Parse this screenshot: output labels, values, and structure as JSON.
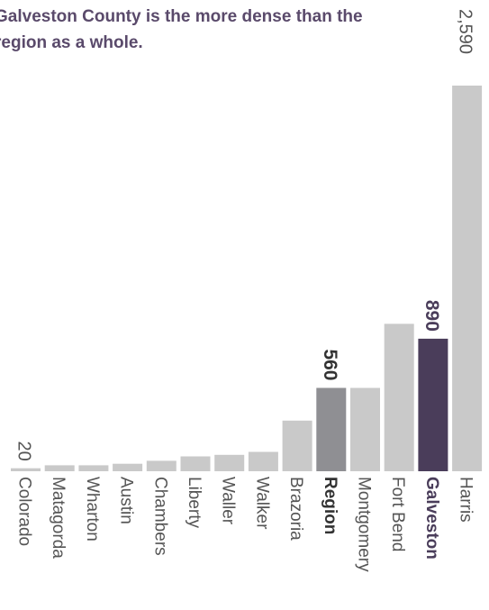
{
  "headline": "Galveston County is the more dense than the region as a whole.",
  "colors": {
    "default_bar": "#c9c9c9",
    "region_bar": "#8f8f93",
    "highlight_bar": "#4a3d5a",
    "label_text": "#555555",
    "highlight_text": "#4a3d5a"
  },
  "chart_data": {
    "type": "bar",
    "orientation": "vertical",
    "categories": [
      "Colorado",
      "Matagorda",
      "Wharton",
      "Austin",
      "Chambers",
      "Liberty",
      "Waller",
      "Walker",
      "Brazoria",
      "Region",
      "Montgomery",
      "Fort Bend",
      "Galveston",
      "Harris"
    ],
    "values": [
      20,
      40,
      40,
      50,
      70,
      100,
      110,
      130,
      340,
      560,
      560,
      990,
      890,
      2590
    ],
    "data_labels": [
      {
        "category": "Colorado",
        "text": "20"
      },
      {
        "category": "Region",
        "text": "560"
      },
      {
        "category": "Galveston",
        "text": "890"
      },
      {
        "category": "Harris",
        "text": "2,590"
      }
    ],
    "highlighted": [
      "Region",
      "Galveston"
    ],
    "ylim": [
      0,
      2590
    ],
    "grid": false,
    "legend": "none"
  }
}
